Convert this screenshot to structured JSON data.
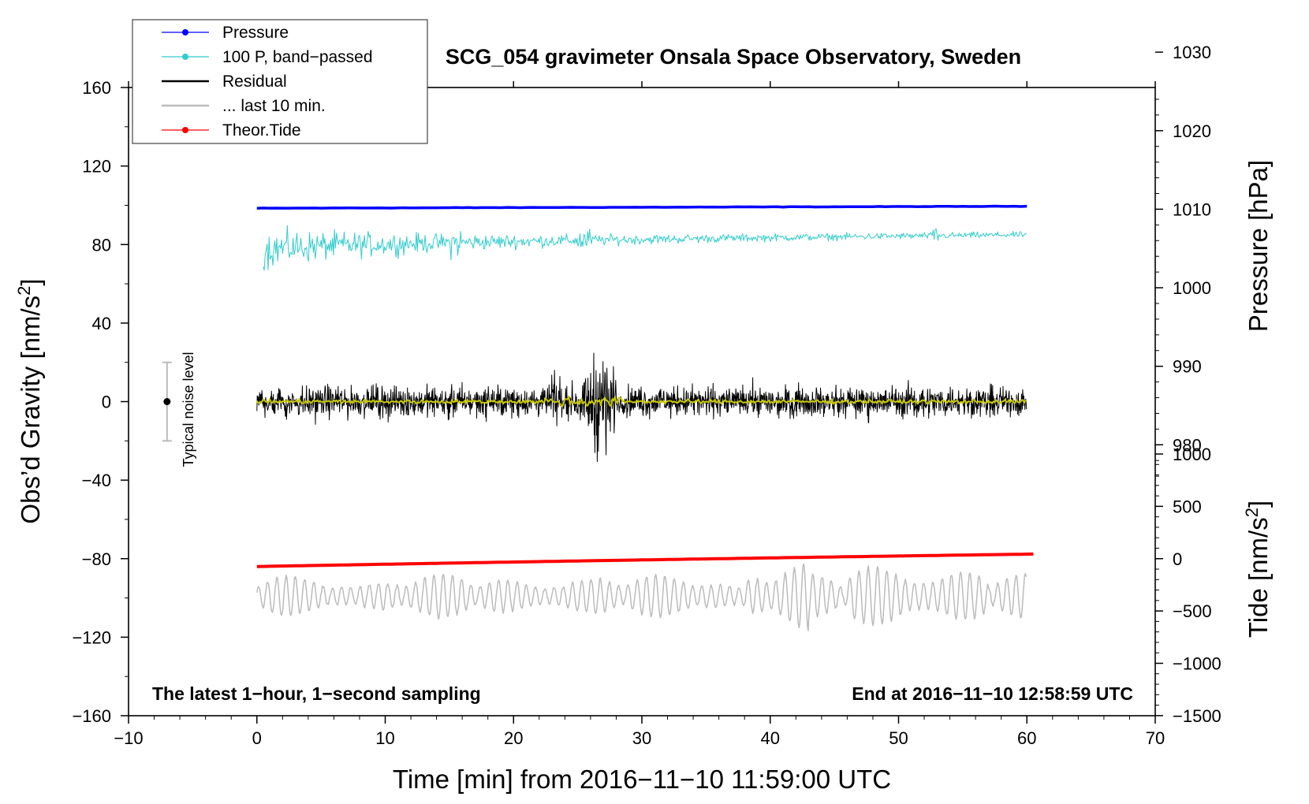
{
  "chart_data": {
    "type": "line",
    "title": "SCG_054 gravimeter Onsala Space Observatory, Sweden",
    "xlabel": "Time [min] from 2016−11−10 11:59:00 UTC",
    "ylabel_left": "Obs’d Gravity [nm/s²]",
    "ylabel_left_base": "Obs’d Gravity [nm/s",
    "ylabel_left_sup": "2",
    "ylabel_left_end": "]",
    "ylabel_right_top": "Pressure [hPa]",
    "ylabel_right_bottom": "Tide [nm/s²]",
    "ylabel_right_bottom_base": "Tide [nm/s",
    "ylabel_right_bottom_sup": "2",
    "ylabel_right_bottom_end": "]",
    "xlim": [
      -10,
      70
    ],
    "ylim": [
      -160,
      160
    ],
    "xticks": [
      "−10",
      "0",
      "10",
      "20",
      "30",
      "40",
      "50",
      "60",
      "70"
    ],
    "xtick_values": [
      -10,
      0,
      10,
      20,
      30,
      40,
      50,
      60,
      70
    ],
    "yticks_left": [
      "160",
      "120",
      "80",
      "40",
      "0",
      "−40",
      "−80",
      "−120",
      "−160"
    ],
    "ytick_values_left": [
      160,
      120,
      80,
      40,
      0,
      -40,
      -80,
      -120,
      -160
    ],
    "pressure_axis": {
      "ticks": [
        "1030",
        "1020",
        "1010",
        "1000",
        "990",
        "980"
      ],
      "values": [
        1030,
        1020,
        1010,
        1000,
        990,
        980
      ],
      "gravity_equiv_per_hpa": 4.0,
      "offset_hpa": 985.5
    },
    "tide_axis": {
      "ticks": [
        "1000",
        "500",
        "0",
        "−500",
        "−1000",
        "−1500"
      ],
      "values": [
        1000,
        500,
        0,
        -500,
        -1000,
        -1500
      ],
      "gravity_equiv_per_1000": 53.3,
      "offset": -80.0
    },
    "annotations": {
      "left_note": "The latest 1−hour, 1−second sampling",
      "right_note": "End at 2016−11−10 12:58:59 UTC",
      "noise_label": "Typical noise level"
    },
    "noise_bar": {
      "x": -7,
      "center": 0,
      "half_range": 20
    },
    "legend": [
      {
        "label": "Pressure",
        "color": "#0000ff",
        "marker": true
      },
      {
        "label": "100 P, band−passed",
        "color": "#33cccc",
        "marker": true
      },
      {
        "label": "Residual",
        "color": "#000000",
        "marker": false
      },
      {
        "label": "... last 10 min.",
        "color": "#bbbbbb",
        "marker": false
      },
      {
        "label": "Theor.Tide",
        "color": "#ff0000",
        "marker": true
      }
    ],
    "series": [
      {
        "name": "Pressure",
        "color": "#0000ff",
        "x_range": [
          0,
          60
        ],
        "gravity_start": 98.5,
        "gravity_end": 99.5
      },
      {
        "name": "100 P, band−passed",
        "color": "#33cccc",
        "x_range": [
          0.5,
          60
        ],
        "gravity_start": 77,
        "gravity_end": 85,
        "early_amplitude": 12,
        "late_amplitude": 2
      },
      {
        "name": "Residual",
        "color": "#000000",
        "x_range": [
          0,
          60
        ],
        "center": 0,
        "typical_amplitude": 12,
        "event_window_min": [
          25.5,
          28
        ],
        "event_amplitude": 45
      },
      {
        "name": "Residual smoothed",
        "color": "#c8c800",
        "x_range": [
          0,
          60
        ],
        "center": 0,
        "typical_amplitude": 1.5
      },
      {
        "name": "... last 10 min.",
        "color": "#bbbbbb",
        "x_range": [
          0,
          60
        ],
        "center": -99,
        "typical_amplitude": 8
      },
      {
        "name": "Theor.Tide",
        "color": "#ff0000",
        "x_range": [
          0,
          60.5
        ],
        "tide_start": -75,
        "tide_end": 60
      }
    ]
  }
}
